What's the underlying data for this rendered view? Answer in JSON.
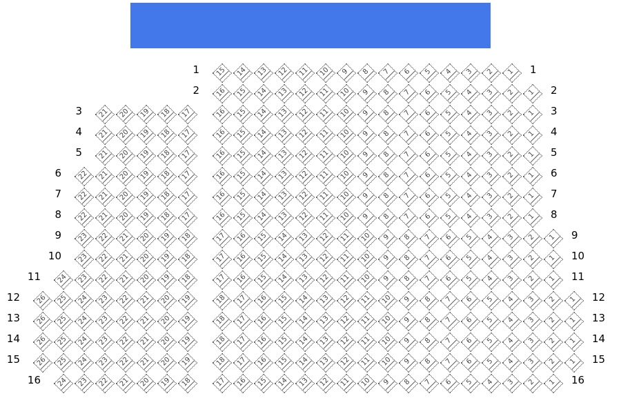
{
  "stage": {
    "color": "#4378eb"
  },
  "seat_icon": "diamond-seat-icon",
  "rows": [
    {
      "label": "1",
      "left": [],
      "right": [
        15,
        14,
        13,
        12,
        11,
        10,
        9,
        8,
        7,
        6,
        5,
        4,
        3,
        2,
        1
      ]
    },
    {
      "label": "2",
      "left": [],
      "right": [
        16,
        15,
        14,
        13,
        12,
        11,
        10,
        9,
        8,
        7,
        6,
        5,
        4,
        3,
        2,
        1
      ]
    },
    {
      "label": "3",
      "left": [
        21,
        20,
        19,
        18,
        17
      ],
      "right": [
        16,
        15,
        14,
        13,
        12,
        11,
        10,
        9,
        8,
        7,
        6,
        5,
        4,
        3,
        2,
        1
      ]
    },
    {
      "label": "4",
      "left": [
        21,
        20,
        19,
        18,
        17
      ],
      "right": [
        16,
        15,
        14,
        13,
        12,
        11,
        10,
        9,
        8,
        7,
        6,
        5,
        4,
        3,
        2,
        1
      ]
    },
    {
      "label": "5",
      "left": [
        21,
        20,
        19,
        18,
        17
      ],
      "right": [
        16,
        15,
        14,
        13,
        12,
        11,
        10,
        9,
        8,
        7,
        6,
        5,
        4,
        3,
        2,
        1
      ]
    },
    {
      "label": "6",
      "left": [
        22,
        21,
        20,
        19,
        18,
        17
      ],
      "right": [
        16,
        15,
        14,
        13,
        12,
        11,
        10,
        9,
        8,
        7,
        6,
        5,
        4,
        3,
        2,
        1
      ]
    },
    {
      "label": "7",
      "left": [
        22,
        21,
        20,
        19,
        18,
        17
      ],
      "right": [
        16,
        15,
        14,
        13,
        12,
        11,
        10,
        9,
        8,
        7,
        6,
        5,
        4,
        3,
        2,
        1
      ]
    },
    {
      "label": "8",
      "left": [
        22,
        21,
        20,
        19,
        18,
        17
      ],
      "right": [
        16,
        15,
        14,
        13,
        12,
        11,
        10,
        9,
        8,
        7,
        6,
        5,
        4,
        3,
        2,
        1
      ]
    },
    {
      "label": "9",
      "left": [
        23,
        22,
        21,
        20,
        19,
        18
      ],
      "right": [
        17,
        16,
        15,
        14,
        13,
        12,
        11,
        10,
        9,
        8,
        7,
        6,
        5,
        4,
        3,
        2,
        1
      ]
    },
    {
      "label": "10",
      "left": [
        23,
        22,
        21,
        20,
        19,
        18
      ],
      "right": [
        17,
        16,
        15,
        14,
        13,
        12,
        11,
        10,
        9,
        8,
        7,
        6,
        5,
        4,
        3,
        2,
        1
      ]
    },
    {
      "label": "11",
      "left": [
        24,
        23,
        22,
        21,
        20,
        19,
        18
      ],
      "right": [
        17,
        16,
        15,
        14,
        13,
        12,
        11,
        10,
        9,
        8,
        7,
        6,
        5,
        4,
        3,
        2,
        1
      ]
    },
    {
      "label": "12",
      "left": [
        26,
        25,
        24,
        23,
        22,
        21,
        20,
        19
      ],
      "right": [
        18,
        17,
        16,
        15,
        14,
        13,
        12,
        11,
        10,
        9,
        8,
        7,
        6,
        5,
        4,
        3,
        2,
        1
      ]
    },
    {
      "label": "13",
      "left": [
        26,
        25,
        24,
        23,
        22,
        21,
        20,
        19
      ],
      "right": [
        18,
        17,
        16,
        15,
        14,
        13,
        12,
        11,
        10,
        9,
        8,
        7,
        6,
        5,
        4,
        3,
        2,
        1
      ]
    },
    {
      "label": "14",
      "left": [
        26,
        25,
        24,
        23,
        22,
        21,
        20,
        19
      ],
      "right": [
        18,
        17,
        16,
        15,
        14,
        13,
        12,
        11,
        10,
        9,
        8,
        7,
        6,
        5,
        4,
        3,
        2,
        1
      ]
    },
    {
      "label": "15",
      "left": [
        26,
        25,
        24,
        23,
        22,
        21,
        20,
        19
      ],
      "right": [
        18,
        17,
        16,
        15,
        14,
        13,
        12,
        11,
        10,
        9,
        8,
        7,
        6,
        5,
        4,
        3,
        2,
        1
      ]
    },
    {
      "label": "16",
      "left": [
        24,
        23,
        22,
        21,
        20,
        19,
        18
      ],
      "right": [
        17,
        16,
        15,
        14,
        13,
        12,
        11,
        10,
        9,
        8,
        7,
        6,
        5,
        4,
        3,
        2,
        1
      ]
    }
  ]
}
